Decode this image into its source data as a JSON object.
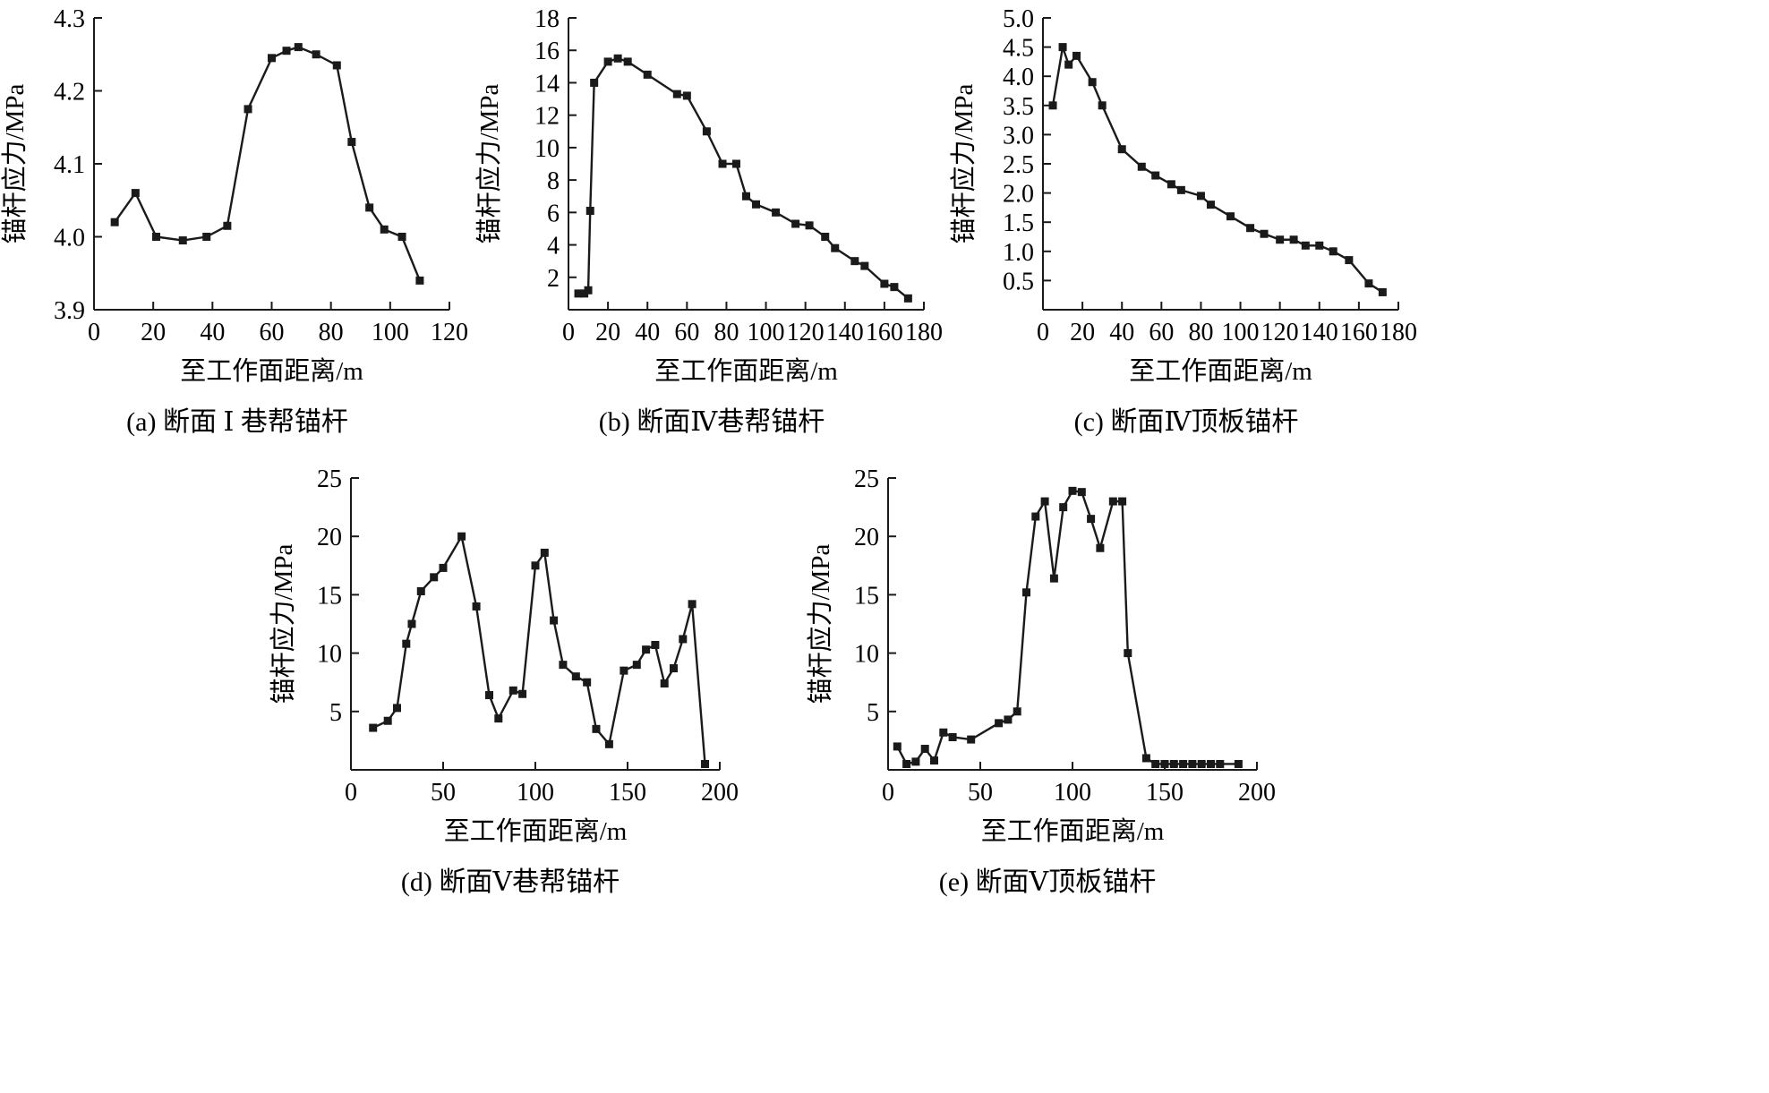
{
  "colors": {
    "line": "#1a1a1a",
    "marker": "#1a1a1a",
    "background": "#ffffff"
  },
  "chart_data": [
    {
      "id": "a",
      "type": "line",
      "caption": "(a) 断面 Ⅰ 巷帮锚杆",
      "xlabel": "至工作面距离/m",
      "ylabel": "锚杆应力/MPa",
      "xlim": [
        0,
        120
      ],
      "ylim": [
        3.9,
        4.3
      ],
      "xticks": [
        0,
        20,
        40,
        60,
        80,
        100,
        120
      ],
      "xtick_labels": [
        "0",
        "20",
        "40",
        "60",
        "80",
        "100",
        "120"
      ],
      "yticks": [
        3.9,
        4.0,
        4.1,
        4.2,
        4.3
      ],
      "ytick_labels": [
        "3.9",
        "4.0",
        "4.1",
        "4.2",
        "4.3"
      ],
      "x": [
        7,
        14,
        21,
        30,
        38,
        45,
        52,
        60,
        65,
        69,
        75,
        82,
        87,
        93,
        98,
        104,
        110
      ],
      "y": [
        4.02,
        4.06,
        4.0,
        3.995,
        4.0,
        4.015,
        4.175,
        4.245,
        4.255,
        4.26,
        4.25,
        4.235,
        4.13,
        4.04,
        4.01,
        4.0,
        3.94
      ]
    },
    {
      "id": "b",
      "type": "line",
      "caption": "(b) 断面Ⅳ巷帮锚杆",
      "xlabel": "至工作面距离/m",
      "ylabel": "锚杆应力/MPa",
      "xlim": [
        0,
        180
      ],
      "ylim": [
        0,
        18
      ],
      "xticks": [
        0,
        20,
        40,
        60,
        80,
        100,
        120,
        140,
        160,
        180
      ],
      "xtick_labels": [
        "0",
        "20",
        "40",
        "60",
        "80",
        "100",
        "120",
        "140",
        "160",
        "180"
      ],
      "yticks": [
        2,
        4,
        6,
        8,
        10,
        12,
        14,
        16,
        18
      ],
      "ytick_labels": [
        "2",
        "4",
        "6",
        "8",
        "10",
        "12",
        "14",
        "16",
        "18"
      ],
      "x": [
        5,
        8,
        10,
        11,
        13,
        20,
        25,
        30,
        40,
        55,
        60,
        70,
        78,
        85,
        90,
        95,
        105,
        115,
        122,
        130,
        135,
        145,
        150,
        160,
        165,
        172
      ],
      "y": [
        1.0,
        1.0,
        1.2,
        6.1,
        14.0,
        15.3,
        15.5,
        15.3,
        14.5,
        13.3,
        13.2,
        11.0,
        9.0,
        9.0,
        7.0,
        6.5,
        6.0,
        5.3,
        5.2,
        4.5,
        3.8,
        3.0,
        2.7,
        1.6,
        1.4,
        0.7
      ]
    },
    {
      "id": "c",
      "type": "line",
      "caption": "(c) 断面Ⅳ顶板锚杆",
      "xlabel": "至工作面距离/m",
      "ylabel": "锚杆应力/MPa",
      "xlim": [
        0,
        180
      ],
      "ylim": [
        0,
        5.0
      ],
      "xticks": [
        0,
        20,
        40,
        60,
        80,
        100,
        120,
        140,
        160,
        180
      ],
      "xtick_labels": [
        "0",
        "20",
        "40",
        "60",
        "80",
        "100",
        "120",
        "140",
        "160",
        "180"
      ],
      "yticks": [
        0.5,
        1.0,
        1.5,
        2.0,
        2.5,
        3.0,
        3.5,
        4.0,
        4.5,
        5.0
      ],
      "ytick_labels": [
        "0.5",
        "1.0",
        "1.5",
        "2.0",
        "2.5",
        "3.0",
        "3.5",
        "4.0",
        "4.5",
        "5.0"
      ],
      "x": [
        5,
        10,
        13,
        17,
        25,
        30,
        40,
        50,
        57,
        65,
        70,
        80,
        85,
        95,
        105,
        112,
        120,
        127,
        133,
        140,
        147,
        155,
        165,
        172
      ],
      "y": [
        3.5,
        4.5,
        4.2,
        4.35,
        3.9,
        3.5,
        2.75,
        2.45,
        2.3,
        2.15,
        2.05,
        1.95,
        1.8,
        1.6,
        1.4,
        1.3,
        1.2,
        1.2,
        1.1,
        1.1,
        1.0,
        0.85,
        0.45,
        0.3
      ]
    },
    {
      "id": "d",
      "type": "line",
      "caption": "(d) 断面Ⅴ巷帮锚杆",
      "xlabel": "至工作面距离/m",
      "ylabel": "锚杆应力/MPa",
      "xlim": [
        0,
        200
      ],
      "ylim": [
        0,
        25
      ],
      "xticks": [
        0,
        50,
        100,
        150,
        200
      ],
      "xtick_labels": [
        "0",
        "50",
        "100",
        "150",
        "200"
      ],
      "yticks": [
        5,
        10,
        15,
        20,
        25
      ],
      "ytick_labels": [
        "5",
        "10",
        "15",
        "20",
        "25"
      ],
      "x": [
        12,
        20,
        25,
        30,
        33,
        38,
        45,
        50,
        60,
        68,
        75,
        80,
        88,
        93,
        100,
        105,
        110,
        115,
        122,
        128,
        133,
        140,
        148,
        155,
        160,
        165,
        170,
        175,
        180,
        185,
        192
      ],
      "y": [
        3.6,
        4.2,
        5.3,
        10.8,
        12.5,
        15.3,
        16.5,
        17.3,
        20.0,
        14.0,
        6.4,
        4.4,
        6.8,
        6.5,
        17.5,
        18.6,
        12.8,
        9.0,
        8.0,
        7.5,
        3.5,
        2.2,
        8.5,
        9.0,
        10.3,
        10.7,
        7.4,
        8.7,
        11.2,
        14.2,
        0.5
      ]
    },
    {
      "id": "e",
      "type": "line",
      "caption": "(e) 断面Ⅴ顶板锚杆",
      "xlabel": "至工作面距离/m",
      "ylabel": "锚杆应力/MPa",
      "xlim": [
        0,
        200
      ],
      "ylim": [
        0,
        25
      ],
      "xticks": [
        0,
        50,
        100,
        150,
        200
      ],
      "xtick_labels": [
        "0",
        "50",
        "100",
        "150",
        "200"
      ],
      "yticks": [
        5,
        10,
        15,
        20,
        25
      ],
      "ytick_labels": [
        "5",
        "10",
        "15",
        "20",
        "25"
      ],
      "x": [
        5,
        10,
        15,
        20,
        25,
        30,
        35,
        45,
        60,
        65,
        70,
        75,
        80,
        85,
        90,
        95,
        100,
        105,
        110,
        115,
        122,
        127,
        130,
        140,
        145,
        150,
        155,
        160,
        165,
        170,
        175,
        180,
        190
      ],
      "y": [
        2.0,
        0.5,
        0.7,
        1.8,
        0.8,
        3.2,
        2.8,
        2.6,
        4.0,
        4.3,
        5.0,
        15.2,
        21.7,
        23.0,
        16.4,
        22.5,
        23.9,
        23.8,
        21.5,
        19.0,
        23.0,
        23.0,
        10.0,
        1.0,
        0.5,
        0.5,
        0.5,
        0.5,
        0.5,
        0.5,
        0.5,
        0.5,
        0.5
      ]
    }
  ]
}
